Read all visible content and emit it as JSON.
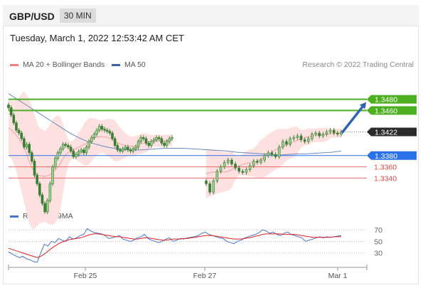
{
  "header": {
    "symbol": "GBP/USD",
    "timeframe": "30 MIN"
  },
  "datetime": "Tuesday, March 1, 2022 12:53:42 AM CET",
  "price_legend": [
    {
      "label": "MA 20 + Bollinger Bands",
      "color": "#f08080"
    },
    {
      "label": "MA 50",
      "color": "#3b64a8"
    }
  ],
  "credit": "Research © 2022 Trading Central",
  "rsi_legend": [
    {
      "label": "RSI",
      "color": "#4a72d0"
    },
    {
      "label": "9MA",
      "color": "#e02020"
    }
  ],
  "colors": {
    "resistance": "#4caf20",
    "pivot": "#2a72e8",
    "support": "#e84545",
    "current": "#2b2b2b",
    "candle": "#3a7d34",
    "band_fill": "#fde1e1"
  },
  "chart_data": [
    {
      "type": "candlestick",
      "title": "GBP/USD 30 MIN",
      "x_ticks": [
        "Feb 25",
        "Feb 27",
        "Mar 1"
      ],
      "ylim": [
        1.329,
        1.353
      ],
      "levels": [
        {
          "value": 1.348,
          "label": "1.3480",
          "kind": "resistance"
        },
        {
          "value": 1.346,
          "label": "1.3460",
          "kind": "resistance"
        },
        {
          "value": 1.3422,
          "label": "1.3422",
          "kind": "current"
        },
        {
          "value": 1.338,
          "label": "1.3380",
          "kind": "pivot"
        },
        {
          "value": 1.336,
          "label": "1.3360",
          "kind": "support"
        },
        {
          "value": 1.334,
          "label": "1.3340",
          "kind": "support"
        }
      ],
      "close": [
        1.3465,
        1.3452,
        1.3438,
        1.3425,
        1.342,
        1.341,
        1.3395,
        1.34,
        1.3385,
        1.337,
        1.3345,
        1.333,
        1.331,
        1.3295,
        1.328,
        1.33,
        1.333,
        1.336,
        1.3375,
        1.3385,
        1.3392,
        1.34,
        1.3398,
        1.3395,
        1.3388,
        1.3378,
        1.3382,
        1.3387,
        1.339,
        1.3385,
        1.3395,
        1.3405,
        1.3412,
        1.3418,
        1.3425,
        1.3432,
        1.3427,
        1.3425,
        1.3423,
        1.342,
        1.341,
        1.3398,
        1.339,
        1.3388,
        1.3392,
        1.3395,
        1.339,
        1.3388,
        1.3392,
        1.3395,
        1.3405,
        1.3412,
        1.341,
        1.3402,
        1.3398,
        1.3405,
        1.3408,
        1.3412,
        1.341,
        1.3402,
        1.3398,
        1.3405,
        1.341,
        1.3412
      ],
      "close_after_gap": [
        1.333,
        1.3315,
        1.3335,
        1.3352,
        1.336,
        1.3368,
        1.3372,
        1.3365,
        1.3358,
        1.3352,
        1.335,
        1.3355,
        1.3362,
        1.337,
        1.3368,
        1.3372,
        1.338,
        1.3385,
        1.3382,
        1.3378,
        1.3395,
        1.3405,
        1.34,
        1.341,
        1.3412,
        1.3415,
        1.3408,
        1.3405,
        1.341,
        1.3418,
        1.342,
        1.3415,
        1.3418,
        1.3422,
        1.3425,
        1.342,
        1.3418,
        1.3422
      ],
      "ma50": [
        1.349,
        1.348,
        1.347,
        1.346,
        1.345,
        1.344,
        1.343,
        1.342,
        1.3412,
        1.3405,
        1.34,
        1.3396,
        1.3393,
        1.3391,
        1.339,
        1.339,
        1.3391,
        1.3392,
        1.3393,
        1.3393,
        1.3393,
        1.3392,
        1.3391,
        1.339,
        1.3389,
        1.3388,
        1.3386,
        1.3385,
        1.3384,
        1.3383,
        1.3382,
        1.3381,
        1.3382,
        1.3383,
        1.3383,
        1.3384,
        1.3385,
        1.3386,
        1.3388
      ],
      "forecast": [
        1.3422,
        1.347
      ]
    },
    {
      "type": "line",
      "title": "RSI",
      "y_ticks": [
        70,
        50,
        30
      ],
      "ylim": [
        10,
        80
      ],
      "series": [
        {
          "name": "RSI",
          "values": [
            32,
            28,
            25,
            22,
            24,
            20,
            18,
            15,
            14,
            30,
            45,
            42,
            50,
            48,
            55,
            52,
            50,
            58,
            54,
            56,
            60,
            62,
            72,
            68,
            65,
            64,
            63,
            60,
            55,
            56,
            58,
            60,
            54,
            52,
            50,
            52,
            56,
            58,
            62,
            55,
            52,
            50,
            48,
            50,
            54,
            56,
            50,
            52,
            55,
            54,
            56,
            57,
            58,
            60,
            64,
            66,
            62,
            60,
            58,
            56,
            55,
            50,
            48,
            46,
            50,
            52,
            56,
            58,
            60,
            62,
            65,
            70,
            68,
            64,
            66,
            62,
            60,
            64,
            66,
            62,
            60,
            58,
            56,
            50,
            52,
            54,
            56,
            58,
            56,
            58,
            57,
            58,
            59,
            60
          ]
        },
        {
          "name": "9MA",
          "values": [
            38,
            36,
            34,
            32,
            30,
            28,
            26,
            24,
            22,
            24,
            28,
            33,
            38,
            42,
            46,
            49,
            51,
            53,
            54,
            55,
            56,
            58,
            60,
            62,
            63,
            63,
            62,
            61,
            60,
            59,
            58,
            58,
            57,
            56,
            55,
            54,
            54,
            55,
            56,
            56,
            55,
            54,
            53,
            52,
            52,
            53,
            54,
            54,
            54,
            55,
            55,
            56,
            57,
            58,
            59,
            60,
            60,
            60,
            59,
            58,
            57,
            56,
            55,
            54,
            54,
            54,
            55,
            56,
            57,
            59,
            60,
            62,
            63,
            63,
            63,
            63,
            63,
            62,
            62,
            62,
            62,
            61,
            60,
            59,
            58,
            57,
            57,
            57,
            57,
            57,
            57,
            58,
            58,
            58
          ]
        }
      ]
    }
  ]
}
